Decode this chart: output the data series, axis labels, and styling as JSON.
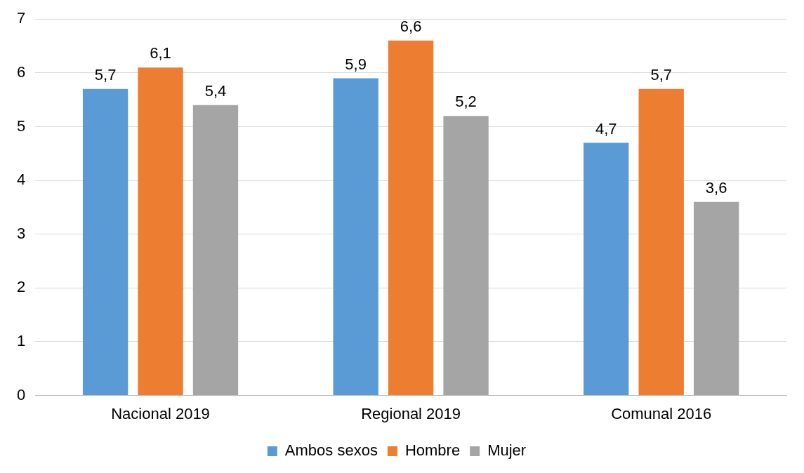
{
  "chart_data": {
    "type": "bar",
    "categories": [
      "Nacional 2019",
      "Regional 2019",
      "Comunal 2016"
    ],
    "series": [
      {
        "name": "Ambos sexos",
        "color": "#5b9bd5",
        "values": [
          5.7,
          5.9,
          4.7
        ],
        "value_labels": [
          "5,7",
          "5,9",
          "4,7"
        ]
      },
      {
        "name": "Hombre",
        "color": "#ed7d31",
        "values": [
          6.1,
          6.6,
          5.7
        ],
        "value_labels": [
          "6,1",
          "6,6",
          "5,7"
        ]
      },
      {
        "name": "Mujer",
        "color": "#a5a5a5",
        "values": [
          5.4,
          5.2,
          3.6
        ],
        "value_labels": [
          "5,4",
          "5,2",
          "3,6"
        ]
      }
    ],
    "ylim": [
      0,
      7
    ],
    "yticks": [
      0,
      1,
      2,
      3,
      4,
      5,
      6,
      7
    ],
    "grid": "y",
    "legend": "bottom"
  }
}
